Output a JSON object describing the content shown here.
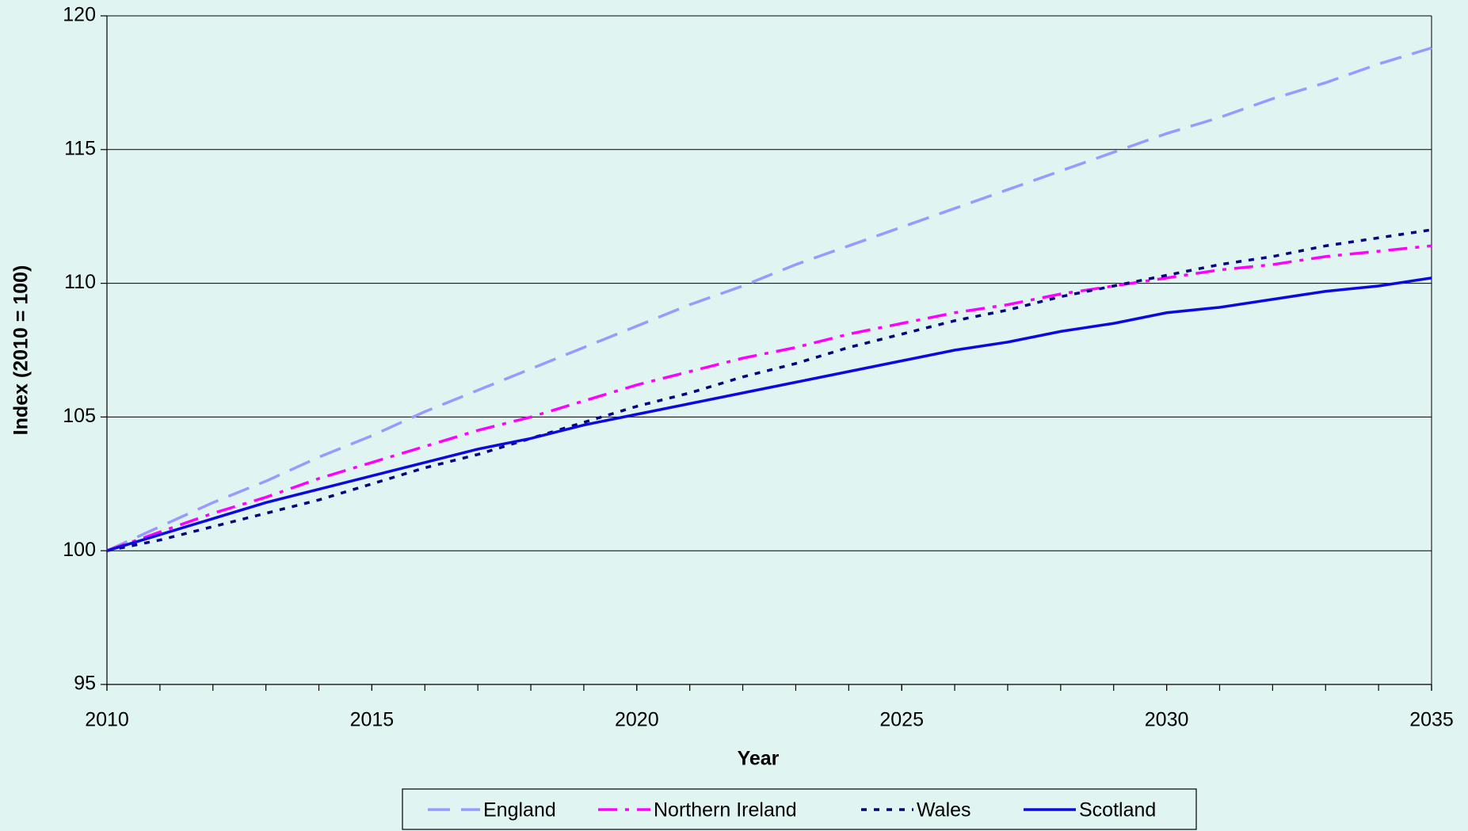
{
  "chart_data": {
    "type": "line",
    "x": [
      2010,
      2011,
      2012,
      2013,
      2014,
      2015,
      2016,
      2017,
      2018,
      2019,
      2020,
      2021,
      2022,
      2023,
      2024,
      2025,
      2026,
      2027,
      2028,
      2029,
      2030,
      2031,
      2032,
      2033,
      2034,
      2035
    ],
    "xlabel": "Year",
    "ylabel": "Index (2010 = 100)",
    "xlim": [
      2010,
      2035
    ],
    "xticks": [
      2010,
      2015,
      2020,
      2025,
      2030,
      2035
    ],
    "ylim": [
      95,
      120
    ],
    "yticks": [
      95,
      100,
      105,
      110,
      115,
      120
    ],
    "grid": true,
    "legend": "bottom",
    "series": [
      {
        "name": "England",
        "color": "#9999ff",
        "dash": "dashed",
        "values": [
          100,
          100.9,
          101.8,
          102.6,
          103.5,
          104.3,
          105.2,
          106.0,
          106.8,
          107.6,
          108.4,
          109.2,
          109.9,
          110.7,
          111.4,
          112.1,
          112.8,
          113.5,
          114.2,
          114.9,
          115.6,
          116.2,
          116.9,
          117.5,
          118.2,
          118.8
        ]
      },
      {
        "name": "Northern Ireland",
        "color": "#ff00ff",
        "dash": "dashdot",
        "values": [
          100,
          100.7,
          101.4,
          102.0,
          102.7,
          103.3,
          103.9,
          104.5,
          105.0,
          105.6,
          106.2,
          106.7,
          107.2,
          107.6,
          108.1,
          108.5,
          108.9,
          109.2,
          109.6,
          109.9,
          110.2,
          110.5,
          110.7,
          111.0,
          111.2,
          111.4
        ]
      },
      {
        "name": "Wales",
        "color": "#000080",
        "dash": "dotted",
        "values": [
          100,
          100.4,
          100.9,
          101.4,
          101.9,
          102.5,
          103.1,
          103.6,
          104.2,
          104.8,
          105.4,
          105.9,
          106.5,
          107.0,
          107.6,
          108.1,
          108.6,
          109.0,
          109.5,
          109.9,
          110.3,
          110.7,
          111.0,
          111.4,
          111.7,
          112.0
        ]
      },
      {
        "name": "Scotland",
        "color": "#0a0ae0",
        "dash": "solid",
        "values": [
          100,
          100.6,
          101.2,
          101.8,
          102.3,
          102.8,
          103.3,
          103.8,
          104.2,
          104.7,
          105.1,
          105.5,
          105.9,
          106.3,
          106.7,
          107.1,
          107.5,
          107.8,
          108.2,
          108.5,
          108.9,
          109.1,
          109.4,
          109.7,
          109.9,
          110.2
        ]
      }
    ]
  }
}
